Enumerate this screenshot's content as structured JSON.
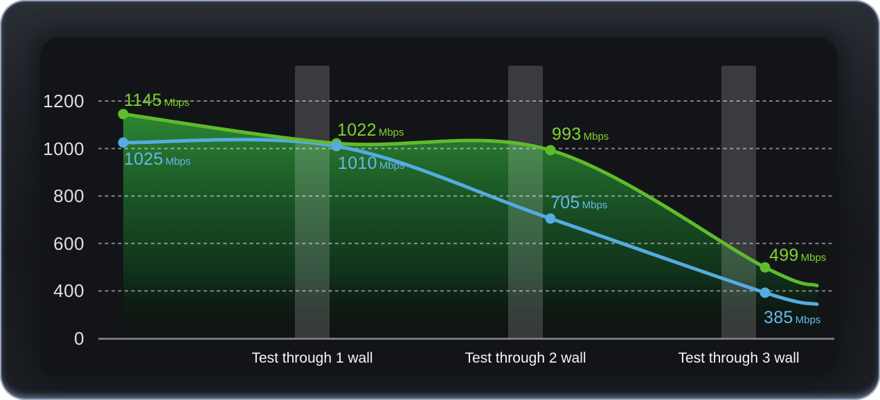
{
  "chart_data": {
    "type": "line",
    "title": "",
    "unit": "Mbps",
    "x_labels": [
      "Test through 1 wall",
      "Test through 2 wall",
      "Test through 3 wall"
    ],
    "y_ticks": [
      1200,
      1000,
      800,
      600,
      400,
      0
    ],
    "ylim": [
      0,
      1345
    ],
    "grid": {
      "style": "dashed-horizontal",
      "color": "rgba(255,255,255,0.48)"
    },
    "legend": "none",
    "series": [
      {
        "name": "green-speed-series",
        "color": "#5fbb2b",
        "label_color": "#7fd32f",
        "area_fill": true,
        "values": [
          1145,
          1022,
          993,
          499
        ],
        "value_labels": [
          "1145",
          "1022",
          "993",
          "499"
        ]
      },
      {
        "name": "blue-speed-series",
        "color": "#55abe2",
        "label_color": "#66b8ec",
        "area_fill": false,
        "values": [
          1025,
          1010,
          705,
          385
        ],
        "value_labels": [
          "1025",
          "1010",
          "705",
          "385"
        ]
      }
    ],
    "walls": {
      "count": 3,
      "color": "rgba(255,255,255,0.17)",
      "description": "vertical translucent bars between test points representing walls"
    }
  },
  "colors": {
    "panel_background": "#131417",
    "bezel_background": "#1d2026",
    "bezel_border": "#a4b5d1",
    "axis_line": "#77797c",
    "y_tick_text": "#dfe0e2",
    "x_label_text": "#f4f5f6",
    "area_gradient_top": "#2f8c35",
    "area_gradient_bottom": "#081a0c"
  }
}
